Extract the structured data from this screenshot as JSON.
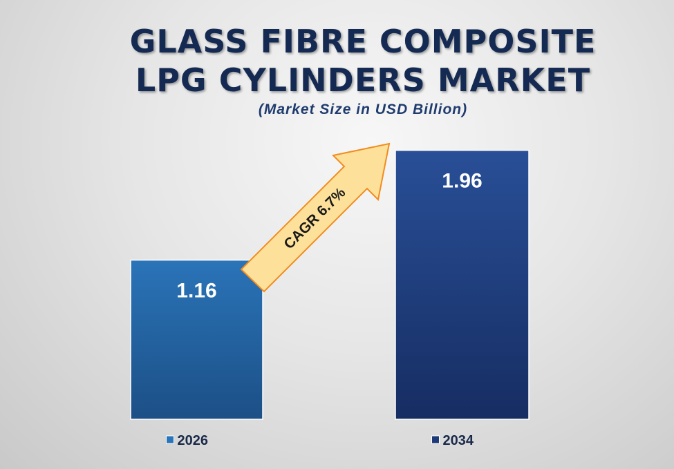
{
  "title_line1": "GLASS FIBRE COMPOSITE",
  "title_line2": "LPG CYLINDERS MARKET",
  "subtitle": "(Market Size in USD Billion)",
  "cagr_label": "CAGR  6.7%",
  "colors": {
    "bar_2026_top": "#2a74b8",
    "bar_2026_bottom": "#1c4f86",
    "bar_2034_top": "#294f97",
    "bar_2034_bottom": "#162d62",
    "arrow_fill": "#fde19a",
    "arrow_stroke": "#f28c1e"
  },
  "chart_data": {
    "type": "bar",
    "categories": [
      "2026",
      "2034"
    ],
    "values": [
      1.16,
      1.96
    ],
    "value_labels": [
      "1.16",
      "1.96"
    ],
    "legend": [
      "2026",
      "2034"
    ],
    "legend_placement": "bottom",
    "grid": false,
    "ylim": [
      0,
      2.25
    ]
  }
}
